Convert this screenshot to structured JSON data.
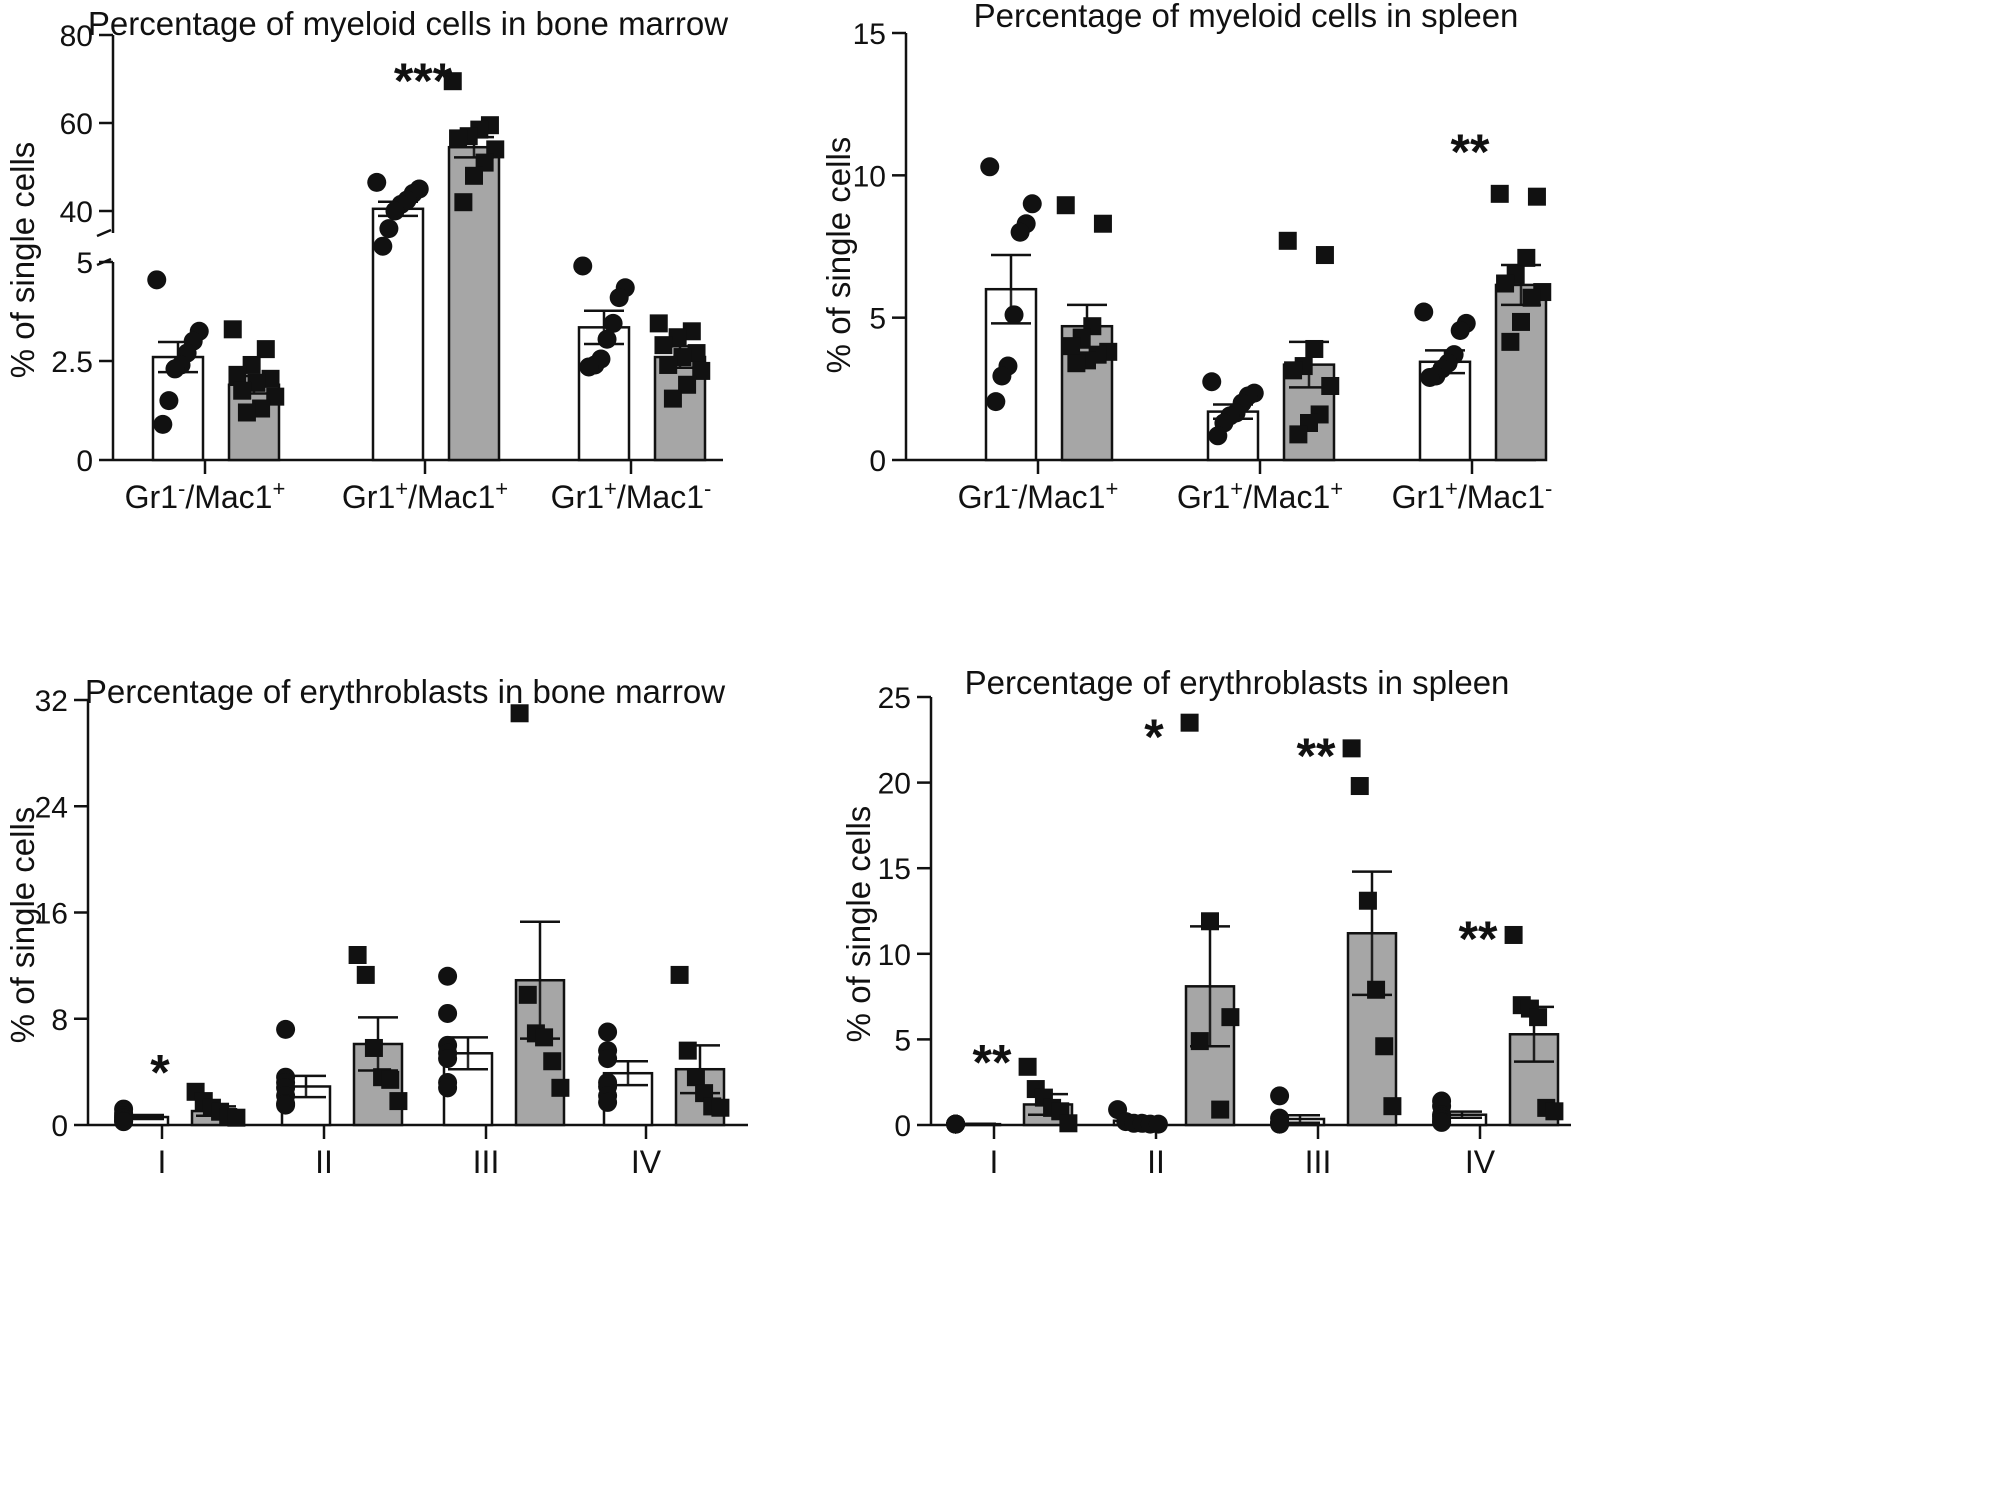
{
  "panels": [
    {
      "id": "myeloid-bm",
      "title": "Percentage of myeloid cells in bone marrow",
      "ylabel": "% of single cells",
      "chart_data": {
        "type": "bar",
        "title": "Percentage of myeloid cells in bone marrow",
        "ylabel": "% of single cells",
        "categories": [
          "Gr1-/Mac1+",
          "Gr1+/Mac1+",
          "Gr1+/Mac1-"
        ],
        "axis_break": true,
        "ylim_lower": [
          0,
          5
        ],
        "ylim_upper": [
          35,
          80
        ],
        "yticks_lower": [
          0,
          2.5,
          5
        ],
        "ytick_labels_lower": [
          "0",
          "2.5",
          "5"
        ],
        "yticks_upper": [
          40,
          60,
          80
        ],
        "ytick_labels_upper": [
          "40",
          "60",
          "80"
        ],
        "series": [
          {
            "color": "#ffffff",
            "marker": "circle",
            "values": [
              2.6,
              40.5,
              3.35
            ],
            "sem": [
              0.38,
              1.6,
              0.42
            ],
            "points": [
              [
                4.55,
                3.25,
                3.0,
                2.7,
                2.4,
                2.3,
                1.5,
                0.9
              ],
              [
                46.5,
                45.0,
                44.0,
                42.5,
                41.5,
                40.0,
                36.0,
                32.0
              ],
              [
                4.9,
                4.35,
                4.1,
                3.45,
                3.05,
                2.55,
                2.4,
                2.35
              ]
            ]
          },
          {
            "color": "#a6a6a6",
            "marker": "square",
            "values": [
              1.9,
              54.5,
              2.6
            ],
            "sem": [
              0.22,
              2.3,
              0.27
            ],
            "points": [
              [
                3.3,
                2.8,
                2.4,
                2.15,
                2.05,
                1.95,
                1.75,
                1.6,
                1.3,
                1.2
              ],
              [
                69.5,
                59.5,
                58.5,
                57.0,
                56.5,
                54.0,
                51.0,
                48.0,
                42.0
              ],
              [
                3.45,
                3.25,
                3.1,
                2.9,
                2.7,
                2.6,
                2.4,
                2.25,
                1.9,
                1.55
              ]
            ]
          }
        ],
        "significance": [
          {
            "category": "Gr1+/Mac1+",
            "label": "***",
            "y": 72
          }
        ]
      }
    },
    {
      "id": "myeloid-spleen",
      "title": "Percentage of myeloid cells in spleen",
      "ylabel": "% of single cells",
      "chart_data": {
        "type": "bar",
        "title": "Percentage of myeloid cells in spleen",
        "ylabel": "% of single cells",
        "categories": [
          "Gr1-/Mac1+",
          "Gr1+/Mac1+",
          "Gr1+/Mac1-"
        ],
        "ylim": [
          0,
          15
        ],
        "yticks": [
          0,
          5,
          10,
          15
        ],
        "ytick_labels": [
          "0",
          "5",
          "10",
          "15"
        ],
        "series": [
          {
            "color": "#ffffff",
            "marker": "circle",
            "values": [
              6.0,
              1.7,
              3.45
            ],
            "sem": [
              1.2,
              0.25,
              0.4
            ],
            "points": [
              [
                10.3,
                9.0,
                8.3,
                8.0,
                5.1,
                3.3,
                2.95,
                2.05
              ],
              [
                2.75,
                2.35,
                2.25,
                2.0,
                1.65,
                1.55,
                1.3,
                0.85
              ],
              [
                5.2,
                4.8,
                4.55,
                3.7,
                3.4,
                3.2,
                2.95,
                2.9
              ]
            ]
          },
          {
            "color": "#a6a6a6",
            "marker": "square",
            "values": [
              4.7,
              3.35,
              6.15
            ],
            "sem": [
              0.75,
              0.8,
              0.7
            ],
            "points": [
              [
                8.95,
                8.3,
                4.7,
                4.3,
                4.0,
                3.8,
                3.7,
                3.5,
                3.4
              ],
              [
                7.7,
                7.2,
                3.9,
                3.3,
                3.15,
                2.6,
                1.6,
                1.3,
                0.9
              ],
              [
                9.35,
                9.25,
                7.1,
                6.5,
                6.2,
                5.9,
                5.7,
                4.85,
                4.15
              ]
            ]
          }
        ],
        "significance": [
          {
            "category": "Gr1+/Mac1-",
            "label": "**",
            "y": 11.2
          }
        ]
      }
    },
    {
      "id": "erythroblasts-bm",
      "title": "Percentage of erythroblasts in bone marrow",
      "ylabel": "% of single cells",
      "chart_data": {
        "type": "bar",
        "title": "Percentage of erythroblasts in bone marrow",
        "ylabel": "% of single cells",
        "categories": [
          "I",
          "II",
          "III",
          "IV"
        ],
        "ylim": [
          0,
          32
        ],
        "yticks": [
          0,
          8,
          16,
          24,
          32
        ],
        "ytick_labels": [
          "0",
          "8",
          "16",
          "24",
          "32"
        ],
        "series": [
          {
            "color": "#ffffff",
            "marker": "circle",
            "values": [
              0.6,
              2.9,
              5.4,
              3.9
            ],
            "sem": [
              0.15,
              0.8,
              1.2,
              0.9
            ],
            "points": [
              [
                1.2,
                0.9,
                0.7,
                0.55,
                0.45,
                0.3,
                0.25
              ],
              [
                7.2,
                3.6,
                3.2,
                2.8,
                2.2,
                1.6,
                1.5
              ],
              [
                11.2,
                8.4,
                6.0,
                5.4,
                5.0,
                3.2,
                2.8
              ],
              [
                7.0,
                5.6,
                5.0,
                3.2,
                2.9,
                2.2,
                1.7
              ]
            ]
          },
          {
            "color": "#a6a6a6",
            "marker": "square",
            "values": [
              1.05,
              6.1,
              10.9,
              4.2
            ],
            "sem": [
              0.35,
              2.0,
              4.4,
              1.8
            ],
            "points": [
              [
                2.5,
                1.8,
                1.3,
                1.0,
                0.6,
                0.55
              ],
              [
                12.8,
                11.3,
                5.8,
                3.6,
                3.4,
                1.8
              ],
              [
                31.0,
                9.8,
                6.9,
                6.6,
                4.8,
                2.8
              ],
              [
                11.3,
                5.6,
                3.6,
                2.4,
                1.4,
                1.3
              ]
            ]
          }
        ],
        "significance": [
          {
            "category": "I",
            "label": "*",
            "y": 4.8
          }
        ]
      }
    },
    {
      "id": "erythroblasts-spleen",
      "title": "Percentage of erythroblasts in spleen",
      "ylabel": "% of single cells",
      "chart_data": {
        "type": "bar",
        "title": "Percentage of erythroblasts in spleen",
        "ylabel": "% of single cells",
        "categories": [
          "I",
          "II",
          "III",
          "IV"
        ],
        "ylim": [
          0,
          25
        ],
        "yticks": [
          0,
          5,
          10,
          15,
          20,
          25
        ],
        "ytick_labels": [
          "0",
          "5",
          "10",
          "15",
          "20",
          "25"
        ],
        "series": [
          {
            "color": "#ffffff",
            "marker": "circle",
            "values": [
              0.05,
              0.25,
              0.35,
              0.6
            ],
            "sem": [
              0.02,
              0.12,
              0.22,
              0.18
            ],
            "points": [
              [
                0.05,
                0.05,
                0.05,
                0.05,
                0.05,
                0.05,
                0.05
              ],
              [
                0.9,
                0.2,
                0.1,
                0.1,
                0.05,
                0.05
              ],
              [
                1.7,
                0.4,
                0.15,
                0.1,
                0.1,
                0.05,
                0.05
              ],
              [
                1.4,
                1.1,
                0.6,
                0.5,
                0.35,
                0.2,
                0.15
              ]
            ]
          },
          {
            "color": "#a6a6a6",
            "marker": "square",
            "values": [
              1.2,
              8.1,
              11.2,
              5.3
            ],
            "sem": [
              0.6,
              3.5,
              3.6,
              1.6
            ],
            "points": [
              [
                3.4,
                2.1,
                1.6,
                1.0,
                0.8,
                0.1
              ],
              [
                23.5,
                11.9,
                6.3,
                4.9,
                0.9
              ],
              [
                22.0,
                19.8,
                13.1,
                7.9,
                4.6,
                1.1
              ],
              [
                11.1,
                7.0,
                6.8,
                6.3,
                1.0,
                0.8
              ]
            ]
          }
        ],
        "significance": [
          {
            "category": "I",
            "label": "**",
            "y": 4.3
          },
          {
            "category": "II",
            "label": "*",
            "y": 23.3
          },
          {
            "category": "III",
            "label": "**",
            "y": 22.2
          },
          {
            "category": "IV",
            "label": "**",
            "y": 11.5
          }
        ]
      }
    }
  ]
}
